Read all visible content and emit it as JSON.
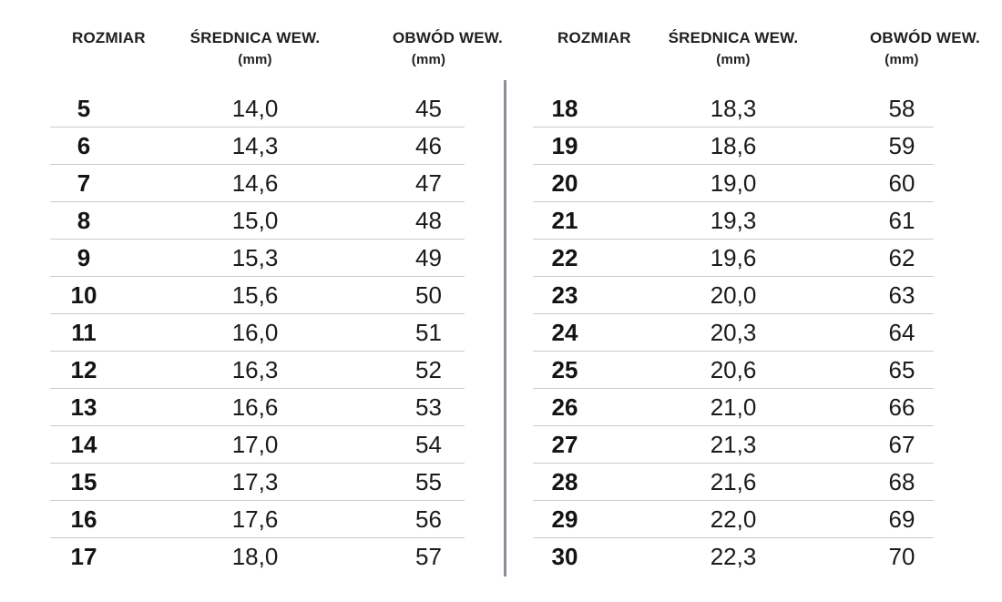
{
  "title": "ring-size-conversion-table",
  "columns": {
    "size": "ROZMIAR",
    "diameter": "ŚREDNICA WEW.",
    "circumference": "OBWÓD WEW.",
    "unit": "(mm)"
  },
  "colors": {
    "background": "#ffffff",
    "text": "#1b1b1b",
    "row_separator": "#cbcbcb",
    "table_divider": "#8b8e96"
  },
  "chart_data": [
    {
      "type": "table",
      "title": "",
      "columns": [
        "ROZMIAR",
        "ŚREDNICA WEW. (mm)",
        "OBWÓD WEW. (mm)"
      ],
      "rows": [
        [
          "5",
          "14,0",
          "45"
        ],
        [
          "6",
          "14,3",
          "46"
        ],
        [
          "7",
          "14,6",
          "47"
        ],
        [
          "8",
          "15,0",
          "48"
        ],
        [
          "9",
          "15,3",
          "49"
        ],
        [
          "10",
          "15,6",
          "50"
        ],
        [
          "11",
          "16,0",
          "51"
        ],
        [
          "12",
          "16,3",
          "52"
        ],
        [
          "13",
          "16,6",
          "53"
        ],
        [
          "14",
          "17,0",
          "54"
        ],
        [
          "15",
          "17,3",
          "55"
        ],
        [
          "16",
          "17,6",
          "56"
        ],
        [
          "17",
          "18,0",
          "57"
        ]
      ]
    },
    {
      "type": "table",
      "title": "",
      "columns": [
        "ROZMIAR",
        "ŚREDNICA WEW. (mm)",
        "OBWÓD WEW. (mm)"
      ],
      "rows": [
        [
          "18",
          "18,3",
          "58"
        ],
        [
          "19",
          "18,6",
          "59"
        ],
        [
          "20",
          "19,0",
          "60"
        ],
        [
          "21",
          "19,3",
          "61"
        ],
        [
          "22",
          "19,6",
          "62"
        ],
        [
          "23",
          "20,0",
          "63"
        ],
        [
          "24",
          "20,3",
          "64"
        ],
        [
          "25",
          "20,6",
          "65"
        ],
        [
          "26",
          "21,0",
          "66"
        ],
        [
          "27",
          "21,3",
          "67"
        ],
        [
          "28",
          "21,6",
          "68"
        ],
        [
          "29",
          "22,0",
          "69"
        ],
        [
          "30",
          "22,3",
          "70"
        ]
      ]
    }
  ]
}
